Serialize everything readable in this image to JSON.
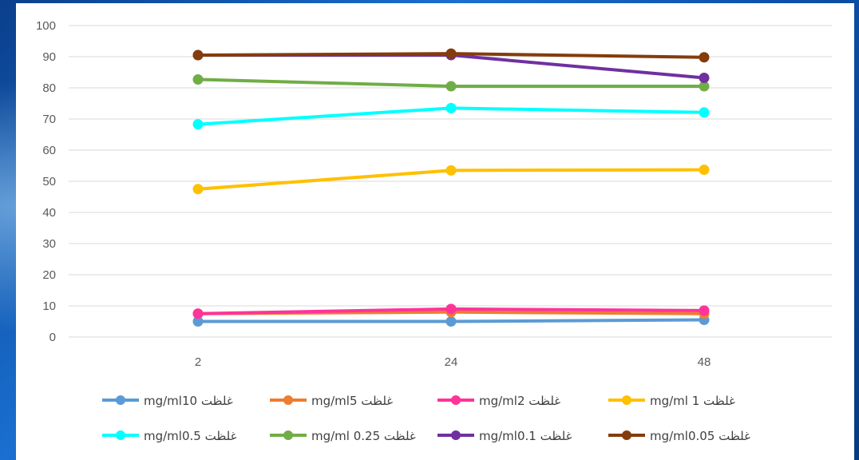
{
  "chart_data": {
    "type": "line",
    "title": "",
    "xlabel": "",
    "ylabel": "",
    "categories": [
      "2",
      "24",
      "48"
    ],
    "ylim": [
      0,
      100
    ],
    "yticks": [
      0,
      10,
      20,
      30,
      40,
      50,
      60,
      70,
      80,
      90,
      100
    ],
    "grid": true,
    "legend_position": "bottom",
    "series": [
      {
        "name": "mg/ml10 غلظت",
        "color": "#5B9BD5",
        "values": [
          5,
          5,
          5.5
        ]
      },
      {
        "name": "mg/ml5 غلظت",
        "color": "#ED7D31",
        "values": [
          7.5,
          8,
          7.5
        ]
      },
      {
        "name": "mg/ml2 غلظت",
        "color": "#FF3399",
        "values": [
          7.5,
          9,
          8.5
        ]
      },
      {
        "name": "mg/ml 1 غلظت",
        "color": "#FFC000",
        "values": [
          47.5,
          53.5,
          53.7
        ]
      },
      {
        "name": "mg/ml0.5 غلظت",
        "color": "#00FFFF",
        "values": [
          68.3,
          73.5,
          72.1
        ]
      },
      {
        "name": "mg/ml 0.25 غلظت",
        "color": "#70AD47",
        "values": [
          82.7,
          80.5,
          80.5
        ]
      },
      {
        "name": "mg/ml0.1 غلظت",
        "color": "#7030A0",
        "values": [
          90.5,
          90.5,
          83.2
        ]
      },
      {
        "name": "mg/ml0.05 غلظت",
        "color": "#843C0C",
        "values": [
          90.5,
          91,
          89.8
        ]
      }
    ]
  }
}
